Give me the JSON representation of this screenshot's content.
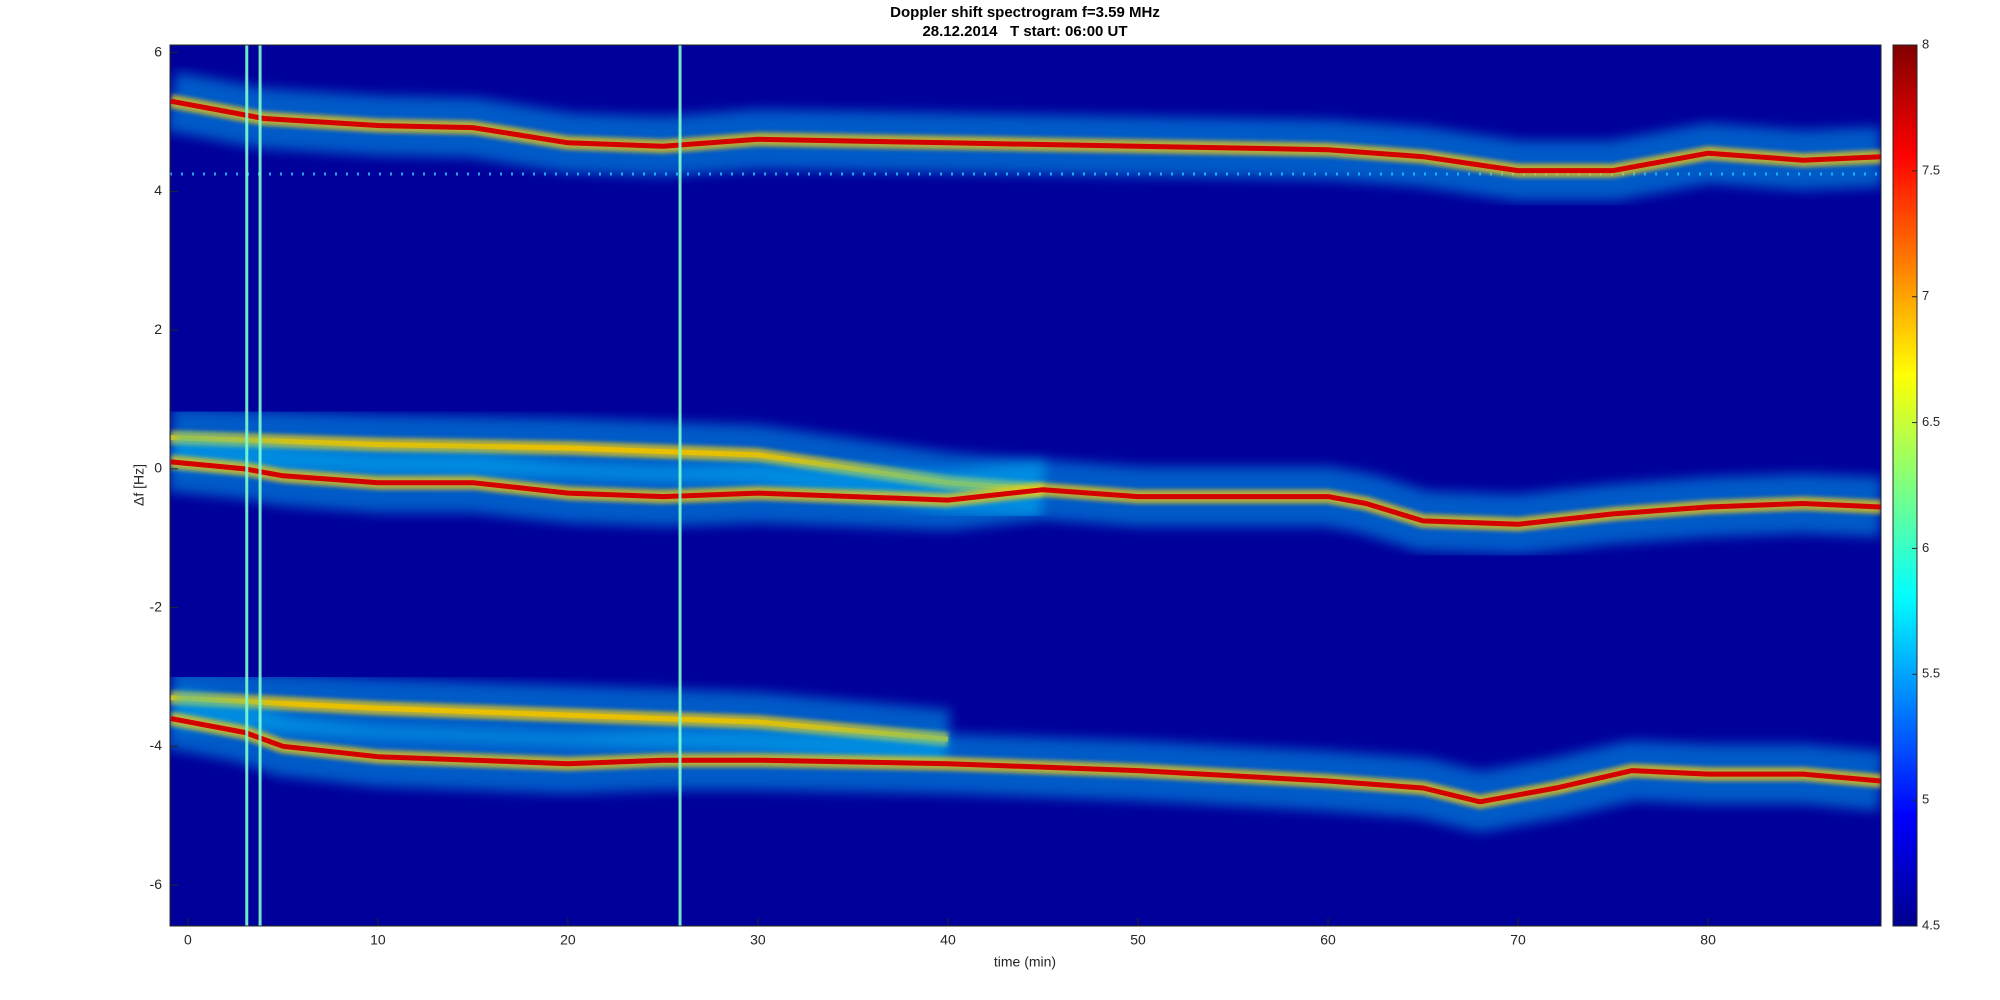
{
  "chart_data": {
    "type": "spectrogram",
    "title": "Doppler shift spectrogram f=3.59 MHz",
    "subtitle": "28.12.2014   T start: 06:00 UT",
    "x_label": "time (min)",
    "y_label": "Δf [Hz]",
    "xlim": [
      -0.94,
      89.1
    ],
    "ylim": [
      -6.59,
      6.11
    ],
    "xticks": [
      0,
      10,
      20,
      30,
      40,
      50,
      60,
      70,
      80
    ],
    "yticks": [
      -6,
      -4,
      -2,
      0,
      2,
      4,
      6
    ],
    "clim": [
      4.5,
      8
    ],
    "cticks": [
      4.5,
      5,
      5.5,
      6,
      6.5,
      7,
      7.5,
      8
    ],
    "background_color": "#00009a",
    "series": [
      {
        "color": "#d40000",
        "x": [
          -0.9,
          4,
          10,
          15,
          20,
          25,
          30,
          40,
          50,
          60,
          65,
          70,
          75,
          80,
          85,
          89.1
        ],
        "values": [
          5.3,
          5.05,
          4.95,
          4.92,
          4.7,
          4.65,
          4.75,
          4.7,
          4.65,
          4.6,
          4.5,
          4.3,
          4.3,
          4.55,
          4.45,
          4.5
        ]
      },
      {
        "color": "#e8c000",
        "x": [
          -0.9,
          10,
          20,
          30,
          40,
          45
        ],
        "values": [
          0.45,
          0.35,
          0.3,
          0.2,
          -0.2,
          -0.3
        ]
      },
      {
        "color": "#d40000",
        "x": [
          -0.9,
          3,
          5,
          10,
          15,
          20,
          25,
          30,
          35,
          40,
          45,
          50,
          55,
          60,
          62,
          65,
          70,
          75,
          80,
          85,
          89.1
        ],
        "values": [
          0.1,
          0.0,
          -0.1,
          -0.2,
          -0.2,
          -0.35,
          -0.4,
          -0.35,
          -0.4,
          -0.45,
          -0.3,
          -0.4,
          -0.4,
          -0.4,
          -0.5,
          -0.75,
          -0.8,
          -0.65,
          -0.55,
          -0.5,
          -0.55
        ]
      },
      {
        "color": "#e8c000",
        "x": [
          -0.9,
          10,
          20,
          30,
          40
        ],
        "values": [
          -3.3,
          -3.45,
          -3.55,
          -3.65,
          -3.9
        ]
      },
      {
        "color": "#d40000",
        "x": [
          -0.9,
          3,
          5,
          10,
          20,
          25,
          30,
          40,
          50,
          60,
          65,
          68,
          72,
          76,
          80,
          85,
          89.1
        ],
        "values": [
          -3.6,
          -3.8,
          -4.0,
          -4.15,
          -4.25,
          -4.2,
          -4.2,
          -4.25,
          -4.35,
          -4.5,
          -4.6,
          -4.8,
          -4.6,
          -4.35,
          -4.4,
          -4.4,
          -4.5
        ]
      }
    ],
    "vlines": [
      3.1,
      3.8,
      25.9
    ],
    "hlines": [
      4.25
    ]
  }
}
